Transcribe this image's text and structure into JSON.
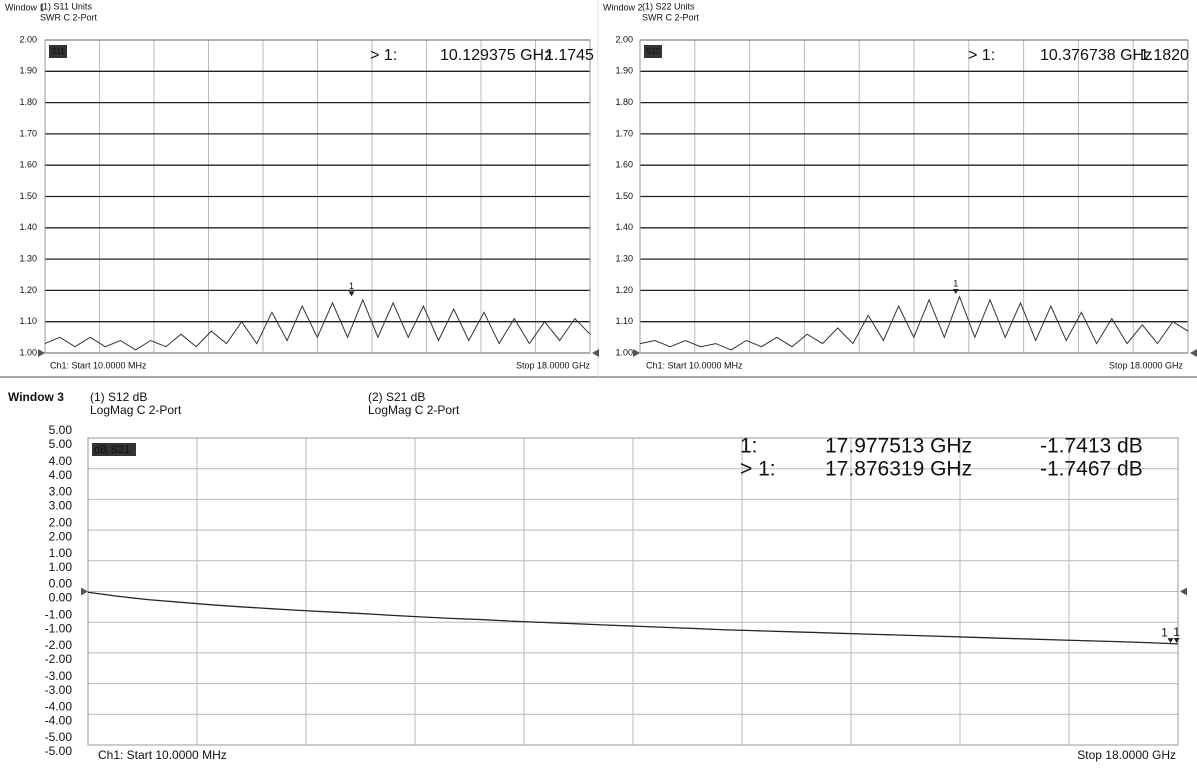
{
  "chart_data": [
    {
      "type": "line",
      "window": "Window 1",
      "headers": [
        {
          "title": "(1) S11 Units",
          "format": "SWR C 2-Port"
        }
      ],
      "tag": "S11",
      "start": "Ch1: Start 10.0000 MHz",
      "stop": "Stop 18.0000 GHz",
      "xlim": [
        0.01,
        18
      ],
      "ylim": [
        1,
        2
      ],
      "grid": true,
      "yticks": [
        {
          "value": 1,
          "label": "1.00"
        },
        {
          "value": 1.1,
          "label": "1.10"
        },
        {
          "value": 1.2,
          "label": "1.20"
        },
        {
          "value": 1.3,
          "label": "1.30"
        },
        {
          "value": 1.4,
          "label": "1.40"
        },
        {
          "value": 1.5,
          "label": "1.50"
        },
        {
          "value": 1.6,
          "label": "1.60"
        },
        {
          "value": 1.7,
          "label": "1.70"
        },
        {
          "value": 1.8,
          "label": "1.80"
        },
        {
          "value": 1.9,
          "label": "1.90"
        },
        {
          "value": 2,
          "label": "2.00"
        }
      ],
      "x": [
        0.01,
        0.5,
        1,
        1.5,
        2,
        2.5,
        3,
        3.5,
        4,
        4.5,
        5,
        5.5,
        6,
        6.5,
        7,
        7.5,
        8,
        8.5,
        9,
        9.5,
        10,
        10.5,
        11,
        11.5,
        12,
        12.5,
        13,
        13.5,
        14,
        14.5,
        15,
        15.5,
        16,
        16.5,
        17,
        17.5,
        18
      ],
      "series": [
        {
          "name": "S11",
          "color": "#333333",
          "values": [
            1.03,
            1.05,
            1.02,
            1.05,
            1.02,
            1.04,
            1.01,
            1.04,
            1.02,
            1.06,
            1.02,
            1.07,
            1.03,
            1.1,
            1.03,
            1.13,
            1.04,
            1.15,
            1.05,
            1.16,
            1.05,
            1.17,
            1.05,
            1.16,
            1.05,
            1.15,
            1.04,
            1.14,
            1.04,
            1.13,
            1.03,
            1.11,
            1.03,
            1.1,
            1.04,
            1.11,
            1.06
          ]
        }
      ],
      "markers": [
        {
          "prefix": "> 1:",
          "label": "1",
          "x": 10.129375,
          "x_text": "10.129375 GHz",
          "value": 1.1745,
          "value_text": "1.1745"
        }
      ]
    },
    {
      "type": "line",
      "window": "Window 2",
      "headers": [
        {
          "title": "(1) S22 Units",
          "format": "SWR C 2-Port"
        }
      ],
      "tag": "S22",
      "start": "Ch1: Start 10.0000 MHz",
      "stop": "Stop 18.0000 GHz",
      "xlim": [
        0.01,
        18
      ],
      "ylim": [
        1,
        2
      ],
      "grid": true,
      "yticks": [
        {
          "value": 1,
          "label": "1.00"
        },
        {
          "value": 1.1,
          "label": "1.10"
        },
        {
          "value": 1.2,
          "label": "1.20"
        },
        {
          "value": 1.3,
          "label": "1.30"
        },
        {
          "value": 1.4,
          "label": "1.40"
        },
        {
          "value": 1.5,
          "label": "1.50"
        },
        {
          "value": 1.6,
          "label": "1.60"
        },
        {
          "value": 1.7,
          "label": "1.70"
        },
        {
          "value": 1.8,
          "label": "1.80"
        },
        {
          "value": 1.9,
          "label": "1.90"
        },
        {
          "value": 2,
          "label": "2.00"
        }
      ],
      "x": [
        0.01,
        0.5,
        1,
        1.5,
        2,
        2.5,
        3,
        3.5,
        4,
        4.5,
        5,
        5.5,
        6,
        6.5,
        7,
        7.5,
        8,
        8.5,
        9,
        9.5,
        10,
        10.5,
        11,
        11.5,
        12,
        12.5,
        13,
        13.5,
        14,
        14.5,
        15,
        15.5,
        16,
        16.5,
        17,
        17.5,
        18
      ],
      "series": [
        {
          "name": "S22",
          "color": "#333333",
          "values": [
            1.03,
            1.04,
            1.02,
            1.04,
            1.02,
            1.03,
            1.01,
            1.04,
            1.02,
            1.05,
            1.02,
            1.06,
            1.03,
            1.08,
            1.03,
            1.12,
            1.04,
            1.15,
            1.05,
            1.17,
            1.05,
            1.18,
            1.05,
            1.17,
            1.05,
            1.16,
            1.04,
            1.15,
            1.04,
            1.13,
            1.03,
            1.11,
            1.03,
            1.09,
            1.03,
            1.1,
            1.07
          ]
        }
      ],
      "markers": [
        {
          "prefix": "> 1:",
          "label": "1",
          "x": 10.376738,
          "x_text": "10.376738 GHz",
          "value": 1.182,
          "value_text": "1.1820"
        }
      ]
    },
    {
      "type": "line",
      "window": "Window 3",
      "headers": [
        {
          "title": "(1) S12 dB",
          "format": "LogMag C 2-Port"
        },
        {
          "title": "(2) S21 dB",
          "format": "LogMag C 2-Port"
        }
      ],
      "tag": "dB S21",
      "start": "Ch1: Start 10.0000 MHz",
      "stop": "Stop 18.0000 GHz",
      "xlim": [
        0.01,
        18
      ],
      "ylim": [
        -5,
        5
      ],
      "y2lim": [
        -5,
        5
      ],
      "grid": true,
      "yticks": [
        {
          "value": 5,
          "label": "5.00"
        },
        {
          "value": 4,
          "label": "4.00"
        },
        {
          "value": 3,
          "label": "3.00"
        },
        {
          "value": 2,
          "label": "2.00"
        },
        {
          "value": 1,
          "label": "1.00"
        },
        {
          "value": 0,
          "label": "0.00"
        },
        {
          "value": -1,
          "label": "-1.00"
        },
        {
          "value": -2,
          "label": "-2.00"
        },
        {
          "value": -3,
          "label": "-3.00"
        },
        {
          "value": -4,
          "label": "-4.00"
        },
        {
          "value": -5,
          "label": "-5.00"
        }
      ],
      "y2ticks": [
        {
          "value": 5,
          "label": "5.00"
        },
        {
          "value": 4,
          "label": "4.00"
        },
        {
          "value": 3,
          "label": "3.00"
        },
        {
          "value": 2,
          "label": "2.00"
        },
        {
          "value": 1,
          "label": "1.00"
        },
        {
          "value": 0,
          "label": "0.00"
        },
        {
          "value": -1,
          "label": "-1.00"
        },
        {
          "value": -2,
          "label": "-2.00"
        },
        {
          "value": -3,
          "label": "-3.00"
        },
        {
          "value": -4,
          "label": "-4.00"
        },
        {
          "value": -5,
          "label": "-5.00"
        }
      ],
      "x": [
        0.01,
        0.5,
        1,
        1.5,
        2,
        2.5,
        3,
        3.5,
        4,
        4.5,
        5,
        5.5,
        6,
        6.5,
        7,
        7.5,
        8,
        8.5,
        9,
        9.5,
        10,
        10.5,
        11,
        11.5,
        12,
        12.5,
        13,
        13.5,
        14,
        14.5,
        15,
        15.5,
        16,
        16.5,
        17,
        17.5,
        18
      ],
      "series": [
        {
          "name": "S12",
          "color": "#444444",
          "values": [
            -0.02,
            -0.15,
            -0.26,
            -0.34,
            -0.42,
            -0.49,
            -0.55,
            -0.61,
            -0.66,
            -0.71,
            -0.77,
            -0.82,
            -0.87,
            -0.91,
            -0.96,
            -1.0,
            -1.04,
            -1.08,
            -1.12,
            -1.16,
            -1.2,
            -1.24,
            -1.27,
            -1.3,
            -1.33,
            -1.36,
            -1.39,
            -1.42,
            -1.45,
            -1.48,
            -1.51,
            -1.54,
            -1.57,
            -1.6,
            -1.63,
            -1.66,
            -1.7
          ]
        },
        {
          "name": "S21",
          "color": "#222222",
          "axis": "y2",
          "values": [
            -0.03,
            -0.16,
            -0.27,
            -0.35,
            -0.43,
            -0.5,
            -0.56,
            -0.62,
            -0.67,
            -0.72,
            -0.78,
            -0.83,
            -0.88,
            -0.92,
            -0.97,
            -1.01,
            -1.05,
            -1.09,
            -1.13,
            -1.17,
            -1.21,
            -1.25,
            -1.28,
            -1.31,
            -1.34,
            -1.37,
            -1.4,
            -1.43,
            -1.46,
            -1.49,
            -1.52,
            -1.55,
            -1.58,
            -1.61,
            -1.64,
            -1.67,
            -1.71
          ]
        }
      ],
      "markers": [
        {
          "prefix": "1:",
          "label": "1",
          "x": 17.977513,
          "x_text": "17.977513 GHz",
          "value": -1.7413,
          "value_text": "-1.7413 dB"
        },
        {
          "prefix": "> 1:",
          "label": "1",
          "x": 17.876319,
          "x_text": "17.876319 GHz",
          "value": -1.7467,
          "value_text": "-1.7467 dB"
        }
      ]
    }
  ]
}
